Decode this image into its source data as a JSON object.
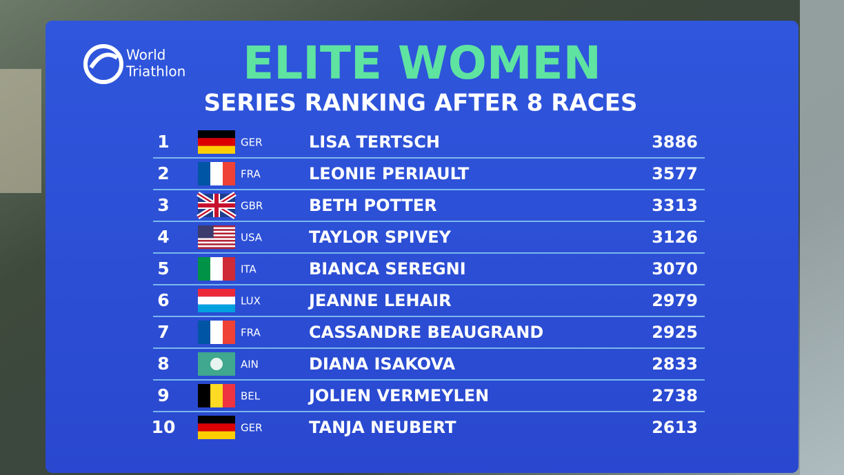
{
  "logo": {
    "line1": "World",
    "line2": "Triathlon"
  },
  "title": "ELITE WOMEN",
  "subtitle": "SERIES RANKING AFTER 8 RACES",
  "table": {
    "rows": [
      [
        1,
        "GER",
        "LISA TERTSCH",
        3886
      ],
      [
        2,
        "FRA",
        "LEONIE PERIAULT",
        3577
      ],
      [
        3,
        "GBR",
        "BETH POTTER",
        3313
      ],
      [
        4,
        "USA",
        "TAYLOR SPIVEY",
        3126
      ],
      [
        5,
        "ITA",
        "BIANCA SEREGNI",
        3070
      ],
      [
        6,
        "LUX",
        "JEANNE LEHAIR",
        2979
      ],
      [
        7,
        "FRA",
        "CASSANDRE BEAUGRAND",
        2925
      ],
      [
        8,
        "AIN",
        "DIANA ISAKOVA",
        2833
      ],
      [
        9,
        "BEL",
        "JOLIEN VERMEYLEN",
        2738
      ],
      [
        10,
        "GER",
        "TANJA NEUBERT",
        2613
      ]
    ]
  }
}
